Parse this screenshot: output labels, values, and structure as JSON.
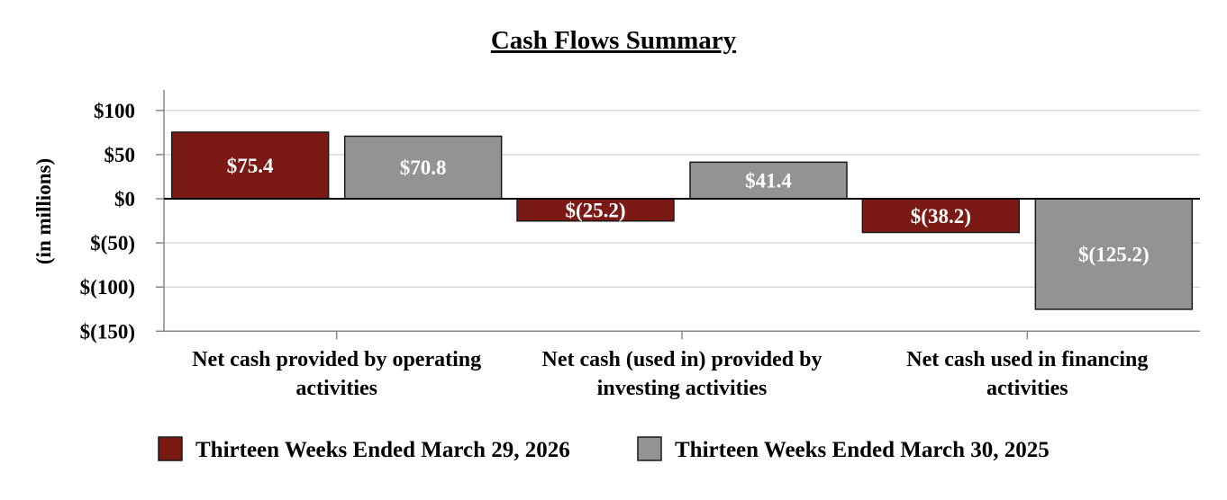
{
  "chart_data": {
    "type": "bar",
    "title": "Cash Flows Summary",
    "ylabel": "(in millions)",
    "xlabel": "",
    "ylim": [
      -150,
      100
    ],
    "yticks": [
      100,
      50,
      0,
      -50,
      -100,
      -150
    ],
    "ytick_labels": [
      "$100",
      "$50",
      "$0",
      "$(50)",
      "$(100)",
      "$(150)"
    ],
    "grid": true,
    "legend_position": "bottom",
    "categories": [
      [
        "Net cash provided by operating",
        "activities"
      ],
      [
        "Net cash (used in) provided by",
        "investing activities"
      ],
      [
        "Net cash used in financing",
        "activities"
      ]
    ],
    "series": [
      {
        "name": "Thirteen Weeks Ended March 29, 2026",
        "color": "#7b1a14",
        "values": [
          75.4,
          -25.2,
          -38.2
        ],
        "labels": [
          "$75.4",
          "$(25.2)",
          "$(38.2)"
        ]
      },
      {
        "name": "Thirteen Weeks Ended March 30, 2025",
        "color": "#939393",
        "values": [
          70.8,
          41.4,
          -125.2
        ],
        "labels": [
          "$70.8",
          "$41.4",
          "$(125.2)"
        ]
      }
    ]
  }
}
